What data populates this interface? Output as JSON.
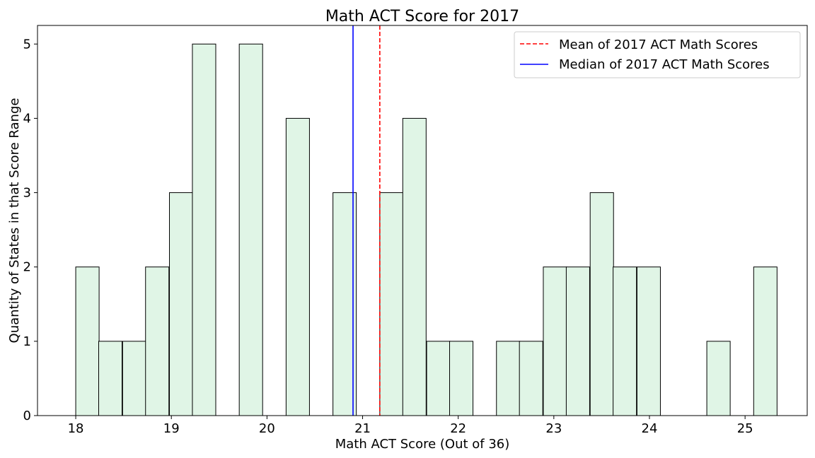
{
  "chart_data": {
    "type": "bar",
    "title": "Math ACT Score for 2017",
    "xlabel": "Math ACT Score (Out of 36)",
    "ylabel": "Quantity of States in that Score Range",
    "xlim": [
      17.6,
      25.65
    ],
    "ylim": [
      0,
      5.25
    ],
    "xticks": [
      18,
      19,
      20,
      21,
      22,
      23,
      24,
      25
    ],
    "yticks": [
      0,
      1,
      2,
      3,
      4,
      5
    ],
    "bin_start": 18.0,
    "bin_width": 0.2444,
    "bins": [
      {
        "x0": 18.0,
        "count": 2
      },
      {
        "x0": 18.24,
        "count": 1
      },
      {
        "x0": 18.49,
        "count": 1
      },
      {
        "x0": 18.73,
        "count": 2
      },
      {
        "x0": 18.98,
        "count": 3
      },
      {
        "x0": 19.22,
        "count": 5
      },
      {
        "x0": 19.47,
        "count": 0
      },
      {
        "x0": 19.71,
        "count": 5
      },
      {
        "x0": 19.96,
        "count": 0
      },
      {
        "x0": 20.2,
        "count": 4
      },
      {
        "x0": 20.44,
        "count": 0
      },
      {
        "x0": 20.69,
        "count": 3
      },
      {
        "x0": 20.93,
        "count": 0
      },
      {
        "x0": 21.18,
        "count": 3
      },
      {
        "x0": 21.42,
        "count": 4
      },
      {
        "x0": 21.67,
        "count": 1
      },
      {
        "x0": 21.91,
        "count": 1
      },
      {
        "x0": 22.16,
        "count": 0
      },
      {
        "x0": 22.4,
        "count": 1
      },
      {
        "x0": 22.64,
        "count": 1
      },
      {
        "x0": 22.89,
        "count": 2
      },
      {
        "x0": 23.13,
        "count": 2
      },
      {
        "x0": 23.38,
        "count": 3
      },
      {
        "x0": 23.62,
        "count": 2
      },
      {
        "x0": 23.87,
        "count": 2
      },
      {
        "x0": 24.11,
        "count": 0
      },
      {
        "x0": 24.36,
        "count": 0
      },
      {
        "x0": 24.6,
        "count": 1
      },
      {
        "x0": 24.84,
        "count": 0
      },
      {
        "x0": 25.09,
        "count": 2
      }
    ],
    "mean_line": {
      "x": 21.18,
      "label": "Mean of 2017 ACT Math Scores",
      "color": "#ff0000",
      "style": "dashed"
    },
    "median_line": {
      "x": 20.9,
      "label": "Median of 2017 ACT Math Scores",
      "color": "#0000ff",
      "style": "solid"
    },
    "bar_fill": "#e0f5e6",
    "bar_edge": "#000000",
    "legend_position": "upper right",
    "grid": false
  }
}
